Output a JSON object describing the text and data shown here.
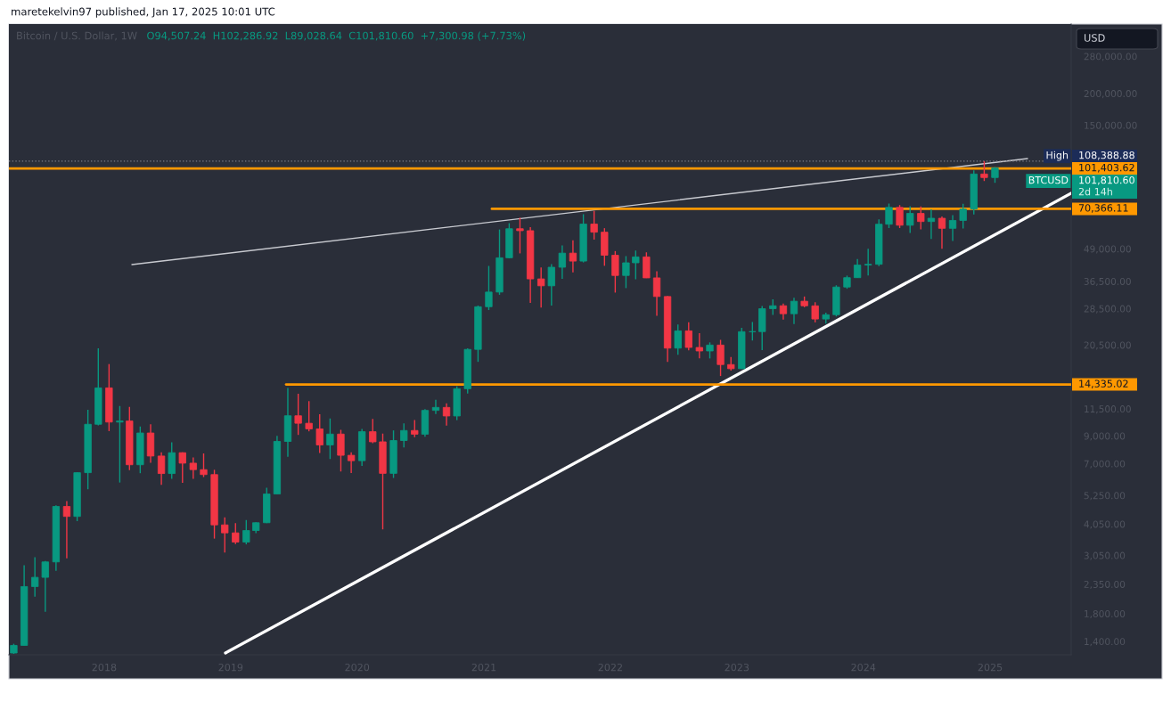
{
  "chart_data": {
    "type": "candlestick",
    "title": "Bitcoin / U.S. Dollar, 1W",
    "subtitle": "O94,507.24  H102,286.92  L89,028.64  C101,810.60  +7,300.98 (+7.73%)",
    "annotations": [
      "maretekelvin97 published, Jan 17, 2025 10:01 UTC",
      "USD",
      "108,388.88",
      "BTCUSD",
      "101,810.60",
      "2d 14h"
    ],
    "log": true,
    "xlim": [
      "2017-04-01",
      "2025-08-23"
    ],
    "xticks": [
      "2018",
      "2019",
      "2020",
      "2021",
      "2022",
      "2023",
      "2024",
      "2025"
    ],
    "ylim": [
      1240,
      375000
    ],
    "yticks": [
      {
        "value": 280000,
        "label": "280,000.00"
      },
      {
        "value": 200000,
        "label": "200,000.00"
      },
      {
        "value": 150000,
        "label": "150,000.00"
      },
      {
        "value": 49000,
        "label": "49,000.00"
      },
      {
        "value": 36500,
        "label": "36,500.00"
      },
      {
        "value": 28500,
        "label": "28,500.00"
      },
      {
        "value": 20500,
        "label": "20,500.00"
      },
      {
        "value": 11500,
        "label": "11,500.00"
      },
      {
        "value": 9000,
        "label": "9,000.00"
      },
      {
        "value": 7000,
        "label": "7,000.00"
      },
      {
        "value": 5250,
        "label": "5,250.00"
      },
      {
        "value": 4050,
        "label": "4,050.00"
      },
      {
        "value": 3050,
        "label": "3,050.00"
      },
      {
        "value": 2350,
        "label": "2,350.00"
      },
      {
        "value": 1800,
        "label": "1,800.00"
      },
      {
        "value": 1400,
        "label": "1,400.00"
      }
    ],
    "ref_lines": [
      {
        "axis": "y",
        "value": 108388.88,
        "label": "High",
        "color": "#787b86",
        "line_style": "dotted"
      }
    ],
    "series": [
      {
        "x": [
          "2017-04-15",
          "2017-05-15",
          "2017-06-15",
          "2017-07-15",
          "2017-08-15",
          "2017-09-15",
          "2017-10-15",
          "2017-11-15",
          "2017-12-15",
          "2018-01-15",
          "2018-02-15",
          "2018-03-15",
          "2018-04-15",
          "2018-05-15",
          "2018-06-15",
          "2018-07-15",
          "2018-08-15",
          "2018-09-15",
          "2018-10-15",
          "2018-11-15",
          "2018-12-15",
          "2019-01-15",
          "2019-02-15",
          "2019-03-15",
          "2019-04-15",
          "2019-05-15",
          "2019-06-15",
          "2019-07-15",
          "2019-08-15",
          "2019-09-15",
          "2019-10-15",
          "2019-11-15",
          "2019-12-15",
          "2020-01-15",
          "2020-02-15",
          "2020-03-15",
          "2020-04-15",
          "2020-05-15",
          "2020-06-15",
          "2020-07-15",
          "2020-08-15",
          "2020-09-15",
          "2020-10-15",
          "2020-11-15",
          "2020-12-15",
          "2021-01-15",
          "2021-02-15",
          "2021-03-15",
          "2021-04-15",
          "2021-05-15",
          "2021-06-15",
          "2021-07-15",
          "2021-08-15",
          "2021-09-15",
          "2021-10-15",
          "2021-11-15",
          "2021-12-15",
          "2022-01-15",
          "2022-02-15",
          "2022-03-15",
          "2022-04-15",
          "2022-05-15",
          "2022-06-15",
          "2022-07-15",
          "2022-08-15",
          "2022-09-15",
          "2022-10-15",
          "2022-11-15",
          "2022-12-15",
          "2023-01-15",
          "2023-02-15",
          "2023-03-15",
          "2023-04-15",
          "2023-05-15",
          "2023-06-15",
          "2023-07-15",
          "2023-08-15",
          "2023-09-15",
          "2023-10-15",
          "2023-11-15",
          "2023-12-15",
          "2024-01-15",
          "2024-02-15",
          "2024-03-15",
          "2024-04-15",
          "2024-05-15",
          "2024-06-15",
          "2024-07-15",
          "2024-08-15",
          "2024-09-15",
          "2024-10-15",
          "2024-11-15",
          "2024-12-15",
          "2025-01-15"
        ],
        "ohlc": [
          [
            1260,
            1370,
            1250,
            1350
          ],
          [
            1350,
            2790,
            1350,
            2300
          ],
          [
            2300,
            3000,
            2100,
            2500
          ],
          [
            2500,
            2900,
            1830,
            2875
          ],
          [
            2875,
            4800,
            2650,
            4750
          ],
          [
            4750,
            4990,
            2970,
            4340
          ],
          [
            4340,
            6470,
            4160,
            6450
          ],
          [
            6450,
            11400,
            5550,
            10000
          ],
          [
            10000,
            19890,
            9900,
            13900
          ],
          [
            13900,
            17250,
            9400,
            10200
          ],
          [
            10200,
            11800,
            5900,
            10300
          ],
          [
            10300,
            11700,
            6600,
            6930
          ],
          [
            6930,
            9800,
            6420,
            9240
          ],
          [
            9240,
            9990,
            7050,
            7500
          ],
          [
            7500,
            7760,
            5780,
            6400
          ],
          [
            6400,
            8500,
            6100,
            7730
          ],
          [
            7730,
            7760,
            5880,
            7030
          ],
          [
            7030,
            7410,
            6100,
            6630
          ],
          [
            6630,
            7680,
            6200,
            6340
          ],
          [
            6340,
            6620,
            3550,
            4020
          ],
          [
            4020,
            4300,
            3130,
            3740
          ],
          [
            3740,
            4080,
            3380,
            3440
          ],
          [
            3440,
            4200,
            3370,
            3820
          ],
          [
            3820,
            4120,
            3730,
            4100
          ],
          [
            4100,
            5630,
            4080,
            5320
          ],
          [
            5320,
            9000,
            5320,
            8560
          ],
          [
            8560,
            13880,
            7450,
            10800
          ],
          [
            10800,
            13180,
            9080,
            10090
          ],
          [
            10090,
            12330,
            9380,
            9590
          ],
          [
            9590,
            10950,
            7710,
            8290
          ],
          [
            8290,
            10540,
            7300,
            9150
          ],
          [
            9150,
            9510,
            6520,
            7550
          ],
          [
            7550,
            7750,
            6430,
            7190
          ],
          [
            7190,
            9580,
            6860,
            9350
          ],
          [
            9350,
            10500,
            8420,
            8530
          ],
          [
            8530,
            9190,
            3860,
            6410
          ],
          [
            6410,
            9460,
            6150,
            8630
          ],
          [
            8630,
            10080,
            8110,
            9450
          ],
          [
            9450,
            10400,
            8900,
            9140
          ],
          [
            9140,
            11460,
            8930,
            11340
          ],
          [
            11340,
            12480,
            10980,
            11650
          ],
          [
            11650,
            12090,
            9880,
            10780
          ],
          [
            10780,
            14100,
            10380,
            13800
          ],
          [
            13800,
            19890,
            13200,
            19700
          ],
          [
            19700,
            29300,
            17600,
            28990
          ],
          [
            28990,
            41950,
            28130,
            33110
          ],
          [
            33110,
            58350,
            32300,
            45160
          ],
          [
            45160,
            61780,
            44950,
            58760
          ],
          [
            58760,
            64900,
            47000,
            57720
          ],
          [
            57720,
            59600,
            30000,
            37300
          ],
          [
            37300,
            41330,
            28800,
            35040
          ],
          [
            35040,
            42600,
            29300,
            41460
          ],
          [
            41460,
            50500,
            37330,
            47100
          ],
          [
            47100,
            52950,
            39600,
            43830
          ],
          [
            43830,
            67000,
            43300,
            61300
          ],
          [
            61300,
            69000,
            53250,
            56950
          ],
          [
            56950,
            59050,
            42000,
            46210
          ],
          [
            46210,
            47990,
            32950,
            38470
          ],
          [
            38470,
            45850,
            34320,
            43160
          ],
          [
            43160,
            48230,
            37150,
            45520
          ],
          [
            45520,
            47450,
            37580,
            37640
          ],
          [
            37640,
            39980,
            26700,
            31800
          ],
          [
            31800,
            31980,
            17600,
            19930
          ],
          [
            19930,
            24670,
            18780,
            23300
          ],
          [
            23300,
            25200,
            19550,
            20050
          ],
          [
            20050,
            22800,
            18150,
            19420
          ],
          [
            19420,
            20990,
            18150,
            20490
          ],
          [
            20490,
            21480,
            15480,
            17170
          ],
          [
            17170,
            18380,
            16260,
            16540
          ],
          [
            16540,
            23960,
            16500,
            23130
          ],
          [
            23130,
            25250,
            21350,
            23140
          ],
          [
            23140,
            29200,
            19570,
            28480
          ],
          [
            28480,
            31000,
            26940,
            29250
          ],
          [
            29250,
            29820,
            25810,
            27210
          ],
          [
            27210,
            31430,
            24800,
            30470
          ],
          [
            30470,
            31800,
            28860,
            29230
          ],
          [
            29230,
            30200,
            25160,
            25940
          ],
          [
            25940,
            27490,
            24900,
            26970
          ],
          [
            26970,
            35200,
            26560,
            34650
          ],
          [
            34650,
            38420,
            34110,
            37720
          ],
          [
            37720,
            44700,
            37630,
            42280
          ],
          [
            42280,
            48970,
            38500,
            42580
          ],
          [
            42580,
            64000,
            41890,
            61200
          ],
          [
            61200,
            73800,
            59100,
            71300
          ],
          [
            71300,
            72800,
            59100,
            60640
          ],
          [
            60640,
            71960,
            56550,
            67500
          ],
          [
            67500,
            71950,
            58400,
            62700
          ],
          [
            62700,
            70000,
            53500,
            64600
          ],
          [
            64600,
            65600,
            49000,
            58970
          ],
          [
            58970,
            66500,
            52550,
            63330
          ],
          [
            63330,
            73620,
            58900,
            70200
          ],
          [
            70200,
            99650,
            66800,
            96450
          ],
          [
            96450,
            108388.88,
            90500,
            93400
          ],
          [
            93400,
            102700,
            89028.64,
            101810.6
          ]
        ],
        "colors": [
          "#089981",
          "#089981",
          "#089981",
          "#089981",
          "#089981",
          "#f23645",
          "#089981",
          "#089981",
          "#089981",
          "#f23645",
          "#089981",
          "#f23645",
          "#089981",
          "#f23645",
          "#f23645",
          "#089981",
          "#f23645",
          "#f23645",
          "#f23645",
          "#f23645",
          "#f23645",
          "#f23645",
          "#089981",
          "#089981",
          "#089981",
          "#089981",
          "#089981",
          "#f23645",
          "#f23645",
          "#f23645",
          "#089981",
          "#f23645",
          "#f23645",
          "#089981",
          "#f23645",
          "#f23645",
          "#089981",
          "#089981",
          "#f23645",
          "#089981",
          "#089981",
          "#f23645",
          "#089981",
          "#089981",
          "#089981",
          "#089981",
          "#089981",
          "#089981",
          "#f23645",
          "#f23645",
          "#f23645",
          "#089981",
          "#089981",
          "#f23645",
          "#089981",
          "#f23645",
          "#f23645",
          "#f23645",
          "#089981",
          "#089981",
          "#f23645",
          "#f23645",
          "#f23645",
          "#089981",
          "#f23645",
          "#f23645",
          "#089981",
          "#f23645",
          "#f23645",
          "#089981",
          "#089981",
          "#089981",
          "#089981",
          "#f23645",
          "#089981",
          "#f23645",
          "#f23645",
          "#089981",
          "#089981",
          "#089981",
          "#089981",
          "#089981",
          "#089981",
          "#089981",
          "#f23645",
          "#089981",
          "#f23645",
          "#089981",
          "#f23645",
          "#089981",
          "#089981",
          "#089981",
          "#f23645",
          "#089981"
        ]
      },
      {
        "type": "line",
        "x": [
          "2018-03-22",
          "2025-04-19"
        ],
        "values": [
          42460,
          110900
        ],
        "color": "#c8cad0"
      },
      {
        "type": "line",
        "x": [
          "2018-12-17",
          "2025-08-23"
        ],
        "values": [
          1260,
          81000
        ],
        "color": "#ffffff"
      },
      {
        "type": "line",
        "x": [
          "2017-04-01",
          "2025-08-23"
        ],
        "values": [
          101403.62,
          101403.62
        ],
        "color": "#ff9800",
        "value_labels": [
          null,
          "101,403.62"
        ]
      },
      {
        "type": "line",
        "x": [
          "2021-01-24",
          "2025-08-23"
        ],
        "values": [
          70366.11,
          70366.11
        ],
        "color": "#ff9800",
        "value_labels": [
          null,
          "70,366.11"
        ]
      },
      {
        "type": "line",
        "x": [
          "2019-06-10",
          "2025-08-23"
        ],
        "values": [
          14335.02,
          14335.02
        ],
        "color": "#ff9800",
        "value_labels": [
          null,
          "14,335.02"
        ]
      }
    ]
  }
}
